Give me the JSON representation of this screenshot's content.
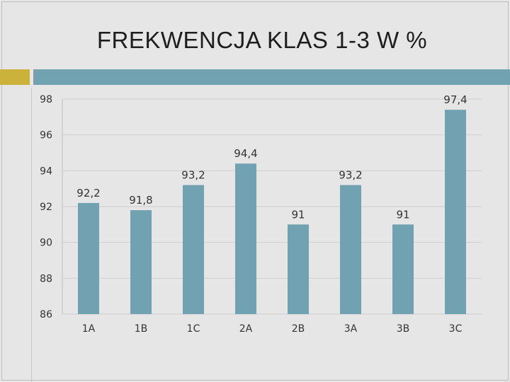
{
  "slide": {
    "title": "FREKWENCJA KLAS 1-3 W %"
  },
  "colors": {
    "background": "#e6e6e6",
    "accent_gold": "#cbb23a",
    "accent_teal": "#70a2b2",
    "bar": "#70a2b2",
    "grid": "#cfcfcf"
  },
  "chart_data": {
    "type": "bar",
    "title": "FREKWENCJA KLAS 1-3 W %",
    "xlabel": "",
    "ylabel": "",
    "categories": [
      "1A",
      "1B",
      "1C",
      "2A",
      "2B",
      "3A",
      "3B",
      "3C"
    ],
    "values": [
      92.2,
      91.8,
      93.2,
      94.4,
      91,
      93.2,
      91,
      97.4
    ],
    "value_labels": [
      "92,2",
      "91,8",
      "93,2",
      "94,4",
      "91",
      "93,2",
      "91",
      "97,4"
    ],
    "ylim": [
      86,
      98
    ],
    "yticks": [
      86,
      88,
      90,
      92,
      94,
      96,
      98
    ],
    "grid": true,
    "legend": "none"
  }
}
